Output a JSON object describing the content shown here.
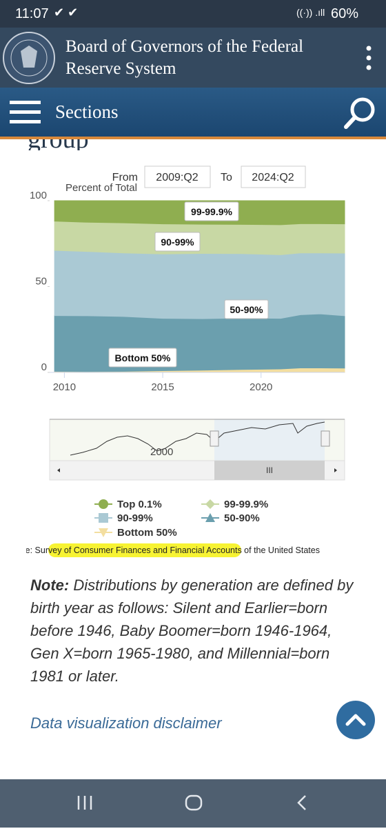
{
  "status": {
    "time": "11:07",
    "battery": "60%"
  },
  "header": {
    "title_line1": "Board of Governors of the Federal",
    "title_line2": "Reserve System",
    "sections": "Sections"
  },
  "heading_fragment": "group",
  "range": {
    "from_label": "From",
    "from": "2009:Q2",
    "to_label": "To",
    "to": "2024:Q2"
  },
  "navigator": {
    "label": "2000"
  },
  "chart_data": {
    "type": "stacked-area",
    "y_label": "Percent of Total",
    "x": [
      2009.5,
      2011,
      2013,
      2015,
      2017,
      2019,
      2021,
      2022,
      2023,
      2024.25
    ],
    "xlim": [
      2009.25,
      2024.25
    ],
    "xticks": [
      2010,
      2015,
      2020
    ],
    "ylim": [
      0,
      100
    ],
    "yticks": [
      0,
      50,
      100
    ],
    "legend": "bottom",
    "series": [
      {
        "name": "Bottom 50%",
        "color": "#f3dea0",
        "values": [
          0.6,
          0.5,
          0.6,
          1.0,
          1.3,
          1.7,
          2.0,
          2.6,
          2.6,
          2.5
        ]
      },
      {
        "name": "50-90%",
        "color": "#6b9fae",
        "values": [
          32.5,
          32.5,
          32,
          30.5,
          30,
          30,
          29.5,
          31,
          31.5,
          30.5
        ]
      },
      {
        "name": "90-99%",
        "color": "#aac9d4",
        "values": [
          38,
          37.5,
          37,
          37.5,
          38,
          37.5,
          37,
          36,
          35.5,
          36.5
        ]
      },
      {
        "name": "99-99.9%",
        "color": "#c8d8a4",
        "values": [
          17,
          17,
          17.5,
          17.5,
          17,
          17,
          17.5,
          17,
          17,
          17
        ]
      },
      {
        "name": "Top 0.1%",
        "color": "#8fae50",
        "values": [
          11.9,
          12.5,
          12.9,
          13.5,
          13.7,
          13.8,
          14,
          13.4,
          13.4,
          13.5
        ]
      }
    ]
  },
  "source": "Source: Survey of Consumer Finances and Financial Accounts of the United States",
  "note": {
    "label": "Note:",
    "text": " Distributions by generation are defined by birth year as follows: Silent and Earlier=born before 1946, Baby Boomer=born 1946-1964, Gen X=born 1965-1980, and Millennial=born 1981 or later."
  },
  "disclaimer": "Data visualization disclaimer"
}
